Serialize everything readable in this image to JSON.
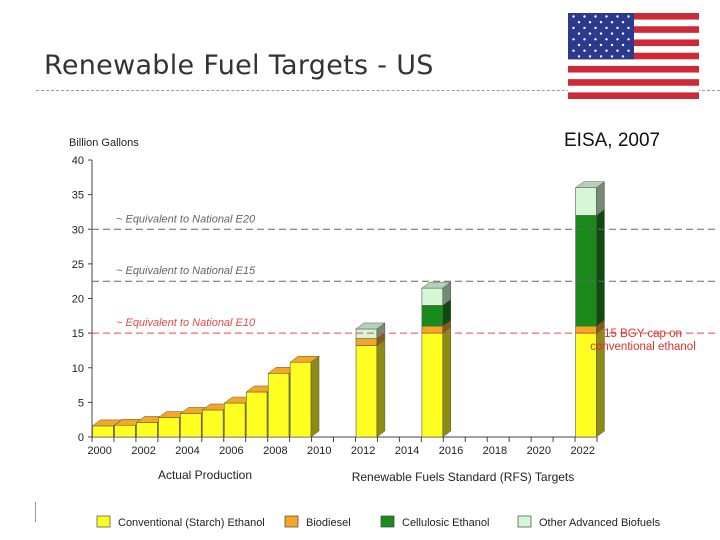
{
  "slide": {
    "title": "Renewable Fuel Targets - US",
    "flag_icon": "us-flag-icon"
  },
  "colors": {
    "conventional": "#ffff22",
    "biodiesel": "#f5a623",
    "cellulosic": "#1a8a1a",
    "other_advanced": "#d6f7d6",
    "e20_line": "#666666",
    "e15_line": "#666666",
    "e10_line": "#e64a4a",
    "cap_text": "#e0302a"
  },
  "chart_data": {
    "type": "bar",
    "stacked": true,
    "subtitle": "EISA, 2007",
    "ylabel": "Billion Gallons",
    "ylim": [
      0,
      40
    ],
    "y_ticks": [
      "0",
      "5",
      "10",
      "15",
      "20",
      "25",
      "30",
      "35",
      "40"
    ],
    "x_tick_labels": [
      "2000",
      "2002",
      "2004",
      "2006",
      "2008",
      "2010",
      "2012",
      "2014",
      "2016",
      "2018",
      "2020",
      "2022"
    ],
    "categories": [
      "2000",
      "2001",
      "2002",
      "2003",
      "2004",
      "2005",
      "2006",
      "2007",
      "2008",
      "2009",
      "2012",
      "2015",
      "2022"
    ],
    "series": [
      {
        "name": "Conventional (Starch) Ethanol",
        "values": [
          1.6,
          1.7,
          2.1,
          2.8,
          3.4,
          3.9,
          4.9,
          6.5,
          9.2,
          10.8,
          13.2,
          15.0,
          15.0
        ]
      },
      {
        "name": "Biodiesel",
        "values": [
          0,
          0,
          0,
          0,
          0,
          0,
          0,
          0,
          0,
          0,
          1.0,
          1.0,
          1.0
        ]
      },
      {
        "name": "Cellulosic Ethanol",
        "values": [
          0,
          0,
          0,
          0,
          0,
          0,
          0,
          0,
          0,
          0,
          0,
          3.0,
          16.0
        ]
      },
      {
        "name": "Other Advanced Biofuels",
        "values": [
          0,
          0,
          0,
          0,
          0,
          0,
          0,
          0,
          0,
          0,
          1.4,
          2.5,
          4.0
        ]
      }
    ],
    "group_labels": [
      "Actual Production",
      "Renewable Fuels Standard (RFS) Targets"
    ],
    "reference_lines": [
      {
        "label": "~ Equivalent to National E20",
        "value": 30
      },
      {
        "label": "~ Equivalent to National E15",
        "value": 22.5
      },
      {
        "label": "~ Equivalent to National E10",
        "value": 15
      }
    ],
    "annotation": [
      "15 BGY cap on",
      "conventional ethanol"
    ],
    "grid": false,
    "legend_position": "bottom"
  }
}
